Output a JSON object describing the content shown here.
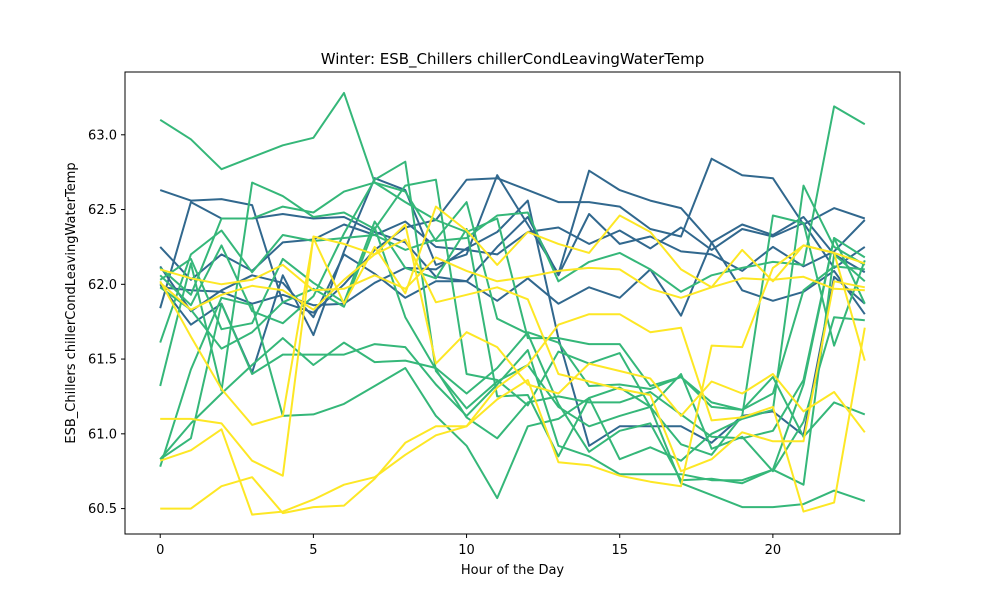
{
  "chart_data": {
    "type": "line",
    "title": "Winter: ESB_Chillers chillerCondLeavingWaterTemp",
    "xlabel": "Hour of the Day",
    "ylabel": "ESB_Chillers chillerCondLeavingWaterTemp",
    "xlim": [
      -1.15,
      24.15
    ],
    "ylim": [
      60.33,
      63.42
    ],
    "x_ticks": [
      0,
      5,
      10,
      15,
      20
    ],
    "y_ticks": [
      60.5,
      61.0,
      61.5,
      62.0,
      62.5,
      63.0
    ],
    "y_tick_labels": [
      "60.5",
      "61.0",
      "61.5",
      "62.0",
      "62.5",
      "63.0"
    ],
    "grid": false,
    "legend": "none",
    "x": [
      0,
      1,
      2,
      3,
      4,
      5,
      6,
      7,
      8,
      9,
      10,
      11,
      12,
      13,
      14,
      15,
      16,
      17,
      18,
      19,
      20,
      21,
      22,
      23
    ],
    "series": [
      {
        "color": "#31688e",
        "values": [
          62.63,
          62.56,
          62.57,
          62.53,
          61.88,
          61.81,
          62.0,
          62.23,
          62.38,
          62.43,
          62.7,
          62.71,
          62.63,
          62.55,
          62.55,
          62.52,
          62.37,
          62.32,
          62.84,
          62.73,
          62.71,
          62.4,
          62.51,
          62.44
        ]
      },
      {
        "color": "#31688e",
        "values": [
          62.25,
          62.03,
          62.2,
          62.09,
          62.28,
          62.3,
          62.4,
          62.33,
          62.42,
          62.25,
          62.23,
          62.2,
          62.35,
          62.38,
          62.27,
          62.36,
          62.24,
          62.38,
          62.23,
          62.37,
          62.32,
          62.41,
          62.11,
          62.25
        ]
      },
      {
        "color": "#31688e",
        "values": [
          62.0,
          61.73,
          61.87,
          61.41,
          62.06,
          61.66,
          62.22,
          62.71,
          62.63,
          62.13,
          62.2,
          62.73,
          62.4,
          62.07,
          62.76,
          62.63,
          62.56,
          62.51,
          62.28,
          62.4,
          62.33,
          62.45,
          62.2,
          62.08
        ]
      },
      {
        "color": "#31688e",
        "values": [
          61.98,
          61.96,
          61.95,
          61.87,
          61.93,
          61.86,
          61.87,
          62.01,
          62.11,
          62.1,
          62.24,
          62.35,
          62.56,
          61.64,
          60.92,
          61.05,
          61.05,
          61.05,
          60.94,
          61.12,
          61.15,
          60.99,
          62.05,
          61.87
        ]
      },
      {
        "color": "#31688e",
        "values": [
          61.84,
          62.55,
          62.44,
          62.44,
          62.47,
          62.44,
          62.45,
          62.35,
          62.28,
          62.05,
          62.02,
          61.89,
          62.04,
          61.87,
          61.98,
          61.91,
          62.1,
          61.79,
          62.28,
          61.96,
          61.89,
          61.95,
          62.09,
          61.8
        ]
      },
      {
        "color": "#31688e",
        "values": [
          62.12,
          61.82,
          61.96,
          62.06,
          62.01,
          61.78,
          62.2,
          62.07,
          61.91,
          62.02,
          62.02,
          62.25,
          62.45,
          62.06,
          62.47,
          62.27,
          62.32,
          62.22,
          62.2,
          62.09,
          62.25,
          62.12,
          62.22,
          62.43
        ]
      },
      {
        "color": "#35b779",
        "values": [
          63.1,
          62.97,
          62.77,
          62.85,
          62.93,
          62.98,
          63.28,
          62.68,
          62.62,
          62.29,
          62.31,
          62.46,
          62.48,
          62.02,
          62.15,
          62.21,
          62.1,
          61.95,
          62.06,
          62.11,
          62.15,
          62.13,
          63.19,
          63.07
        ]
      },
      {
        "color": "#35b779",
        "values": [
          62.11,
          61.93,
          62.44,
          62.44,
          62.52,
          62.48,
          62.62,
          62.68,
          62.55,
          62.43,
          62.35,
          62.44,
          61.64,
          61.64,
          61.6,
          61.6,
          61.32,
          61.38,
          61.18,
          61.16,
          61.27,
          61.96,
          62.12,
          62.1
        ]
      },
      {
        "color": "#35b779",
        "values": [
          62.06,
          61.86,
          62.26,
          61.82,
          61.74,
          61.92,
          62.34,
          62.7,
          62.82,
          61.42,
          61.17,
          61.35,
          61.46,
          61.18,
          61.05,
          61.12,
          61.18,
          61.4,
          60.9,
          60.98,
          60.75,
          61.08,
          61.78,
          61.76
        ]
      },
      {
        "color": "#35b779",
        "values": [
          61.32,
          62.14,
          61.29,
          62.68,
          62.59,
          62.45,
          62.48,
          62.37,
          62.66,
          62.7,
          61.4,
          61.36,
          61.19,
          61.55,
          61.47,
          61.54,
          61.18,
          60.93,
          60.86,
          61.12,
          62.46,
          62.41,
          61.59,
          62.16
        ]
      },
      {
        "color": "#35b779",
        "values": [
          61.61,
          62.2,
          62.36,
          62.08,
          62.33,
          62.29,
          62.31,
          62.33,
          62.23,
          62.3,
          62.55,
          61.77,
          61.67,
          61.2,
          60.88,
          61.02,
          61.07,
          60.69,
          60.7,
          60.67,
          60.76,
          61.33,
          62.31,
          62.18
        ]
      },
      {
        "color": "#35b779",
        "values": [
          62.03,
          62.17,
          61.7,
          61.74,
          62.17,
          62.01,
          61.88,
          62.42,
          62.11,
          62.04,
          62.37,
          61.25,
          61.26,
          60.85,
          61.24,
          60.83,
          60.91,
          60.82,
          61.0,
          61.1,
          61.16,
          62.66,
          62.25,
          62.13
        ]
      },
      {
        "color": "#35b779",
        "values": [
          60.78,
          61.43,
          61.91,
          61.86,
          61.12,
          61.13,
          61.2,
          61.32,
          61.44,
          61.12,
          60.92,
          60.57,
          61.05,
          61.1,
          61.24,
          61.31,
          61.18,
          60.67,
          60.59,
          60.51,
          60.51,
          60.53,
          60.62,
          60.55
        ]
      },
      {
        "color": "#35b779",
        "values": [
          60.83,
          61.07,
          61.27,
          61.46,
          61.64,
          61.46,
          61.61,
          61.48,
          61.49,
          61.44,
          61.27,
          61.44,
          61.68,
          61.61,
          61.32,
          61.33,
          61.3,
          61.38,
          61.21,
          61.16,
          61.38,
          60.98,
          61.21,
          61.13
        ]
      },
      {
        "color": "#35b779",
        "values": [
          61.98,
          61.83,
          61.57,
          61.68,
          61.88,
          61.97,
          61.85,
          62.38,
          61.78,
          61.43,
          61.11,
          60.97,
          61.21,
          61.25,
          61.21,
          61.21,
          61.28,
          61.13,
          60.98,
          60.97,
          61.02,
          61.36,
          62.31,
          61.87
        ]
      },
      {
        "color": "#35b779",
        "values": [
          60.83,
          60.97,
          61.87,
          61.4,
          61.53,
          61.53,
          61.53,
          61.6,
          61.58,
          61.33,
          61.12,
          61.33,
          61.56,
          60.92,
          60.85,
          60.73,
          60.73,
          60.73,
          60.69,
          60.69,
          60.76,
          60.66,
          62.2,
          62.02
        ]
      },
      {
        "color": "#fde725",
        "values": [
          62.02,
          61.65,
          61.3,
          61.06,
          61.12,
          62.31,
          61.87,
          62.25,
          61.94,
          62.52,
          62.36,
          62.13,
          62.35,
          62.27,
          62.21,
          62.46,
          62.35,
          62.1,
          61.98,
          62.23,
          62.02,
          62.26,
          62.21,
          61.49
        ]
      },
      {
        "color": "#fde725",
        "values": [
          61.1,
          61.1,
          61.07,
          60.82,
          60.72,
          62.32,
          62.27,
          62.2,
          62.4,
          61.47,
          61.68,
          61.58,
          61.33,
          61.27,
          61.47,
          61.42,
          61.37,
          61.12,
          61.35,
          61.27,
          61.4,
          61.15,
          61.28,
          61.01
        ]
      },
      {
        "color": "#fde725",
        "values": [
          60.82,
          60.89,
          61.03,
          60.46,
          60.48,
          60.56,
          60.66,
          60.71,
          60.86,
          60.99,
          61.05,
          61.31,
          61.46,
          61.73,
          61.8,
          61.8,
          61.68,
          61.71,
          61.09,
          61.11,
          61.18,
          60.48,
          60.54,
          61.71
        ]
      },
      {
        "color": "#fde725",
        "values": [
          60.5,
          60.5,
          60.65,
          60.71,
          60.47,
          60.51,
          60.52,
          60.7,
          60.94,
          61.05,
          61.05,
          61.23,
          61.36,
          60.81,
          60.79,
          60.72,
          60.68,
          60.65,
          61.59,
          61.58,
          62.11,
          62.26,
          62.21,
          62.14
        ]
      },
      {
        "color": "#fde725",
        "values": [
          62.01,
          61.83,
          61.93,
          61.99,
          61.96,
          61.83,
          62.03,
          62.2,
          62.3,
          61.88,
          61.93,
          61.98,
          61.9,
          61.4,
          61.35,
          61.3,
          61.26,
          60.75,
          60.83,
          61.01,
          60.95,
          60.95,
          62.02,
          61.98
        ]
      },
      {
        "color": "#fde725",
        "values": [
          62.1,
          62.04,
          62.0,
          62.03,
          62.13,
          61.96,
          61.97,
          62.06,
          61.97,
          62.18,
          62.09,
          62.02,
          62.05,
          62.09,
          62.11,
          62.1,
          61.97,
          61.91,
          61.98,
          62.04,
          62.03,
          62.05,
          61.97,
          61.96
        ]
      }
    ]
  }
}
